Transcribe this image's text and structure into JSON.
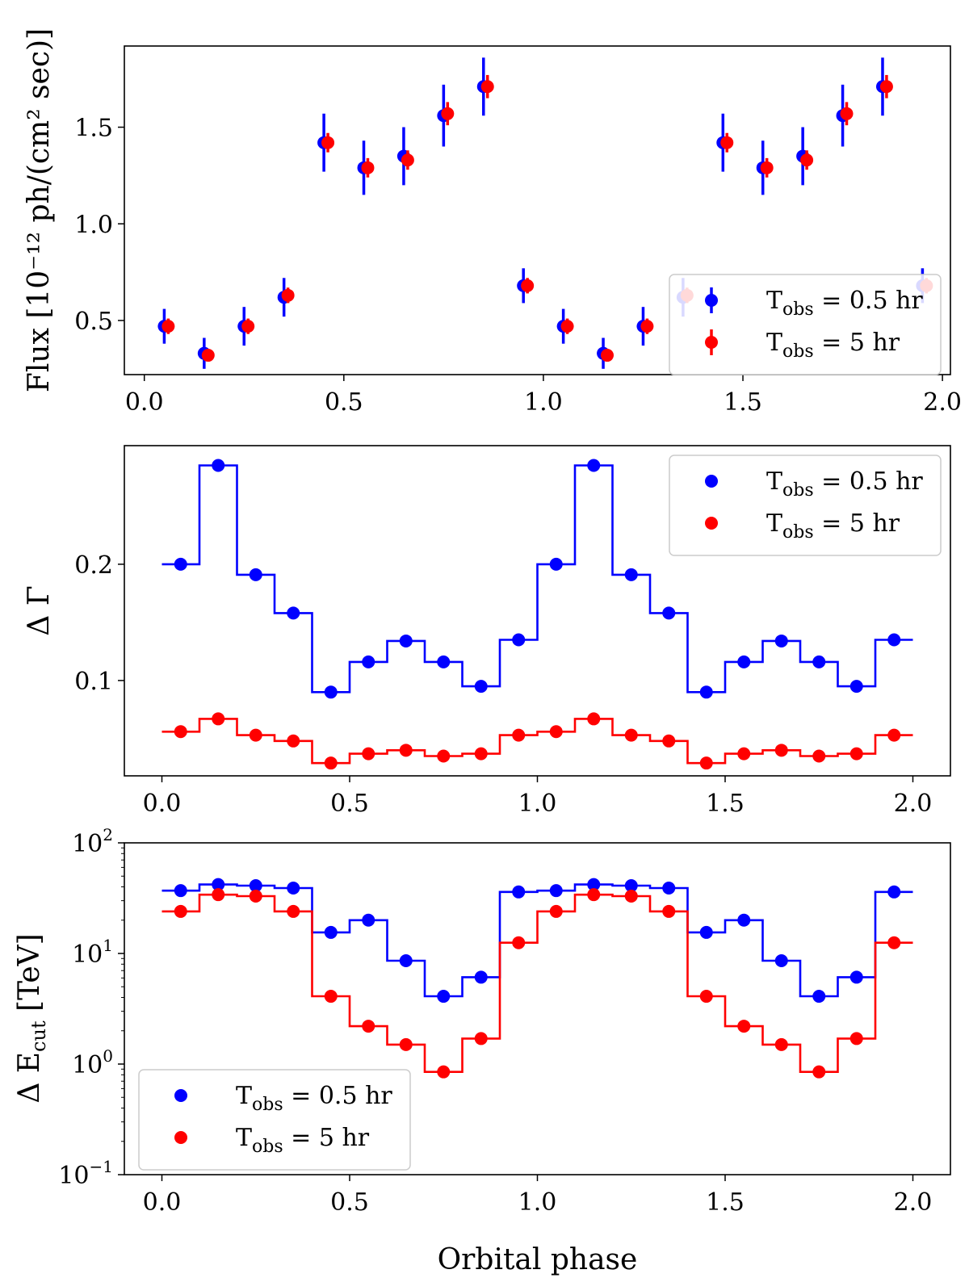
{
  "chart_data": [
    {
      "type": "scatter",
      "panel": "flux",
      "ylabel": "Flux [10⁻¹² ph/(cm² sec)]",
      "xlabel": "",
      "xlim": [
        -0.05,
        2.02
      ],
      "ylim": [
        0.22,
        1.92
      ],
      "xticks": [
        {
          "value": 0.0,
          "label": "0.0"
        },
        {
          "value": 0.5,
          "label": "0.5"
        },
        {
          "value": 1.0,
          "label": "1.0"
        },
        {
          "value": 1.5,
          "label": "1.5"
        },
        {
          "value": 2.0,
          "label": "2.0"
        }
      ],
      "yticks": [
        {
          "value": 0.5,
          "label": "0.5"
        },
        {
          "value": 1.0,
          "label": "1.0"
        },
        {
          "value": 1.5,
          "label": "1.5"
        }
      ],
      "legend_position": "lower-right",
      "series": [
        {
          "name": "T_obs = 0.5 hr",
          "legend_main": "T",
          "legend_sub": "obs",
          "legend_rest": " = 0.5 hr",
          "color": "#0000ff",
          "x": [
            0.05,
            0.15,
            0.25,
            0.35,
            0.45,
            0.55,
            0.65,
            0.75,
            0.85,
            0.95,
            1.05,
            1.15,
            1.25,
            1.35,
            1.45,
            1.55,
            1.65,
            1.75,
            1.85,
            1.95
          ],
          "y": [
            0.47,
            0.33,
            0.47,
            0.62,
            1.42,
            1.29,
            1.35,
            1.56,
            1.71,
            0.68,
            0.47,
            0.33,
            0.47,
            0.62,
            1.42,
            1.29,
            1.35,
            1.56,
            1.71,
            0.68
          ],
          "err": [
            0.09,
            0.08,
            0.1,
            0.1,
            0.15,
            0.14,
            0.15,
            0.16,
            0.15,
            0.09,
            0.09,
            0.08,
            0.1,
            0.1,
            0.15,
            0.14,
            0.15,
            0.16,
            0.15,
            0.09
          ]
        },
        {
          "name": "T_obs = 5 hr",
          "legend_main": "T",
          "legend_sub": "obs",
          "legend_rest": " = 5 hr",
          "color": "#ff0000",
          "x": [
            0.06,
            0.16,
            0.26,
            0.36,
            0.46,
            0.56,
            0.66,
            0.76,
            0.86,
            0.96,
            1.06,
            1.16,
            1.26,
            1.36,
            1.46,
            1.56,
            1.66,
            1.76,
            1.86,
            1.96
          ],
          "y": [
            0.47,
            0.32,
            0.47,
            0.63,
            1.42,
            1.29,
            1.33,
            1.57,
            1.71,
            0.68,
            0.47,
            0.32,
            0.47,
            0.63,
            1.42,
            1.29,
            1.33,
            1.57,
            1.71,
            0.68
          ],
          "err": [
            0.04,
            0.03,
            0.04,
            0.04,
            0.05,
            0.05,
            0.05,
            0.06,
            0.06,
            0.04,
            0.04,
            0.03,
            0.04,
            0.04,
            0.05,
            0.05,
            0.05,
            0.06,
            0.06,
            0.04
          ]
        }
      ]
    },
    {
      "type": "line",
      "panel": "gamma",
      "ylabel": "Δ Γ",
      "xlabel": "",
      "xlim": [
        -0.1,
        2.1
      ],
      "ylim": [
        0.018,
        0.302
      ],
      "xticks": [
        {
          "value": 0.0,
          "label": "0.0"
        },
        {
          "value": 0.5,
          "label": "0.5"
        },
        {
          "value": 1.0,
          "label": "1.0"
        },
        {
          "value": 1.5,
          "label": "1.5"
        },
        {
          "value": 2.0,
          "label": "2.0"
        }
      ],
      "yticks": [
        {
          "value": 0.1,
          "label": "0.1"
        },
        {
          "value": 0.2,
          "label": "0.2"
        }
      ],
      "legend_position": "upper-right",
      "series": [
        {
          "name": "T_obs = 0.5 hr",
          "legend_main": "T",
          "legend_sub": "obs",
          "legend_rest": " = 0.5 hr",
          "color": "#0000ff",
          "x": [
            0.05,
            0.15,
            0.25,
            0.35,
            0.45,
            0.55,
            0.65,
            0.75,
            0.85,
            0.95,
            1.05,
            1.15,
            1.25,
            1.35,
            1.45,
            1.55,
            1.65,
            1.75,
            1.85,
            1.95
          ],
          "y": [
            0.2,
            0.285,
            0.191,
            0.158,
            0.09,
            0.116,
            0.134,
            0.116,
            0.095,
            0.135,
            0.2,
            0.285,
            0.191,
            0.158,
            0.09,
            0.116,
            0.134,
            0.116,
            0.095,
            0.135
          ]
        },
        {
          "name": "T_obs = 5 hr",
          "legend_main": "T",
          "legend_sub": "obs",
          "legend_rest": " = 5 hr",
          "color": "#ff0000",
          "x": [
            0.05,
            0.15,
            0.25,
            0.35,
            0.45,
            0.55,
            0.65,
            0.75,
            0.85,
            0.95,
            1.05,
            1.15,
            1.25,
            1.35,
            1.45,
            1.55,
            1.65,
            1.75,
            1.85,
            1.95
          ],
          "y": [
            0.056,
            0.067,
            0.053,
            0.048,
            0.029,
            0.037,
            0.04,
            0.035,
            0.037,
            0.053,
            0.056,
            0.067,
            0.053,
            0.048,
            0.029,
            0.037,
            0.04,
            0.035,
            0.037,
            0.053
          ]
        }
      ]
    },
    {
      "type": "line",
      "panel": "ecut",
      "ylabel": "Δ E_cut [TeV]",
      "ylabel_main": "Δ E",
      "ylabel_sub": "cut",
      "ylabel_rest": " [TeV]",
      "xlabel": "Orbital phase",
      "yscale": "log",
      "xlim": [
        -0.1,
        2.1
      ],
      "ylim": [
        0.1,
        100
      ],
      "xticks": [
        {
          "value": 0.0,
          "label": "0.0"
        },
        {
          "value": 0.5,
          "label": "0.5"
        },
        {
          "value": 1.0,
          "label": "1.0"
        },
        {
          "value": 1.5,
          "label": "1.5"
        },
        {
          "value": 2.0,
          "label": "2.0"
        }
      ],
      "yticks": [
        {
          "value": 0.1,
          "base": "10",
          "exp": "−1"
        },
        {
          "value": 1,
          "base": "10",
          "exp": "0"
        },
        {
          "value": 10,
          "base": "10",
          "exp": "1"
        },
        {
          "value": 100,
          "base": "10",
          "exp": "2"
        }
      ],
      "legend_position": "lower-left",
      "series": [
        {
          "name": "T_obs = 0.5 hr",
          "legend_main": "T",
          "legend_sub": "obs",
          "legend_rest": " = 0.5 hr",
          "color": "#0000ff",
          "x": [
            0.05,
            0.15,
            0.25,
            0.35,
            0.45,
            0.55,
            0.65,
            0.75,
            0.85,
            0.95,
            1.05,
            1.15,
            1.25,
            1.35,
            1.45,
            1.55,
            1.65,
            1.75,
            1.85,
            1.95
          ],
          "y": [
            37,
            42,
            41,
            39,
            15.5,
            20,
            8.6,
            4.1,
            6.1,
            36,
            37,
            42,
            41,
            39,
            15.5,
            20,
            8.6,
            4.1,
            6.1,
            36
          ]
        },
        {
          "name": "T_obs = 5 hr",
          "legend_main": "T",
          "legend_sub": "obs",
          "legend_rest": " = 5 hr",
          "color": "#ff0000",
          "x": [
            0.05,
            0.15,
            0.25,
            0.35,
            0.45,
            0.55,
            0.65,
            0.75,
            0.85,
            0.95,
            1.05,
            1.15,
            1.25,
            1.35,
            1.45,
            1.55,
            1.65,
            1.75,
            1.85,
            1.95
          ],
          "y": [
            24,
            34,
            33,
            24,
            4.1,
            2.2,
            1.5,
            0.85,
            1.7,
            12.5,
            24,
            34,
            33,
            24,
            4.1,
            2.2,
            1.5,
            0.85,
            1.7,
            12.5
          ]
        }
      ]
    }
  ]
}
